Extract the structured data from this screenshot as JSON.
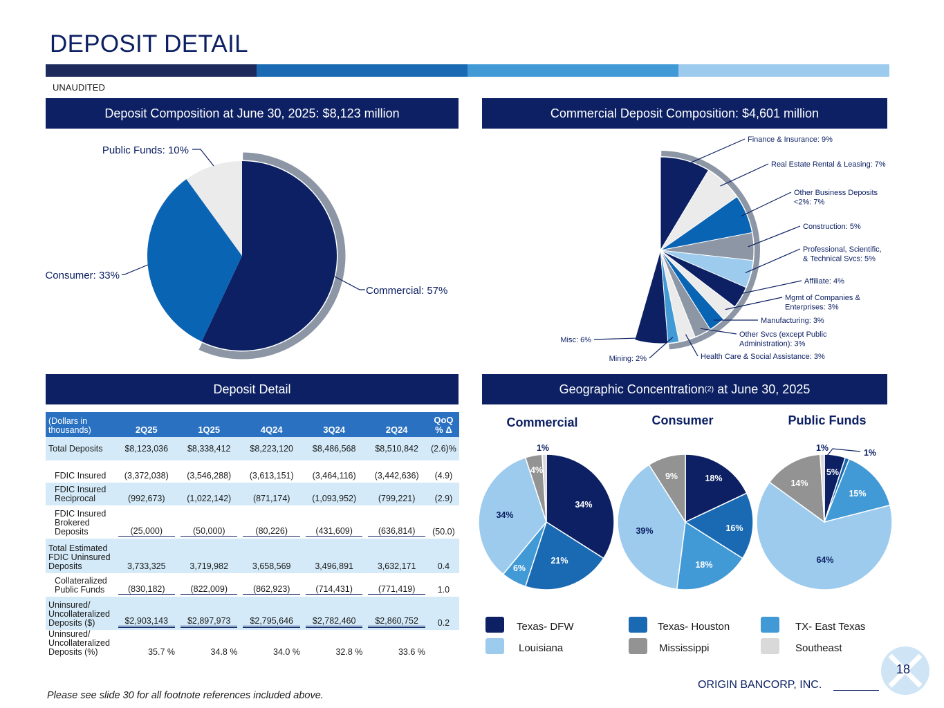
{
  "page": {
    "title": "DEPOSIT DETAIL",
    "unaudited": "UNAUDITED",
    "footnote": "Please see slide 30 for all footnote references included above.",
    "company": "ORIGIN BANCORP, INC.",
    "page_number": "18",
    "accent_colors": [
      "#1f2a5c",
      "#1a69b3",
      "#4199d6",
      "#9dcbed"
    ]
  },
  "headers": {
    "composition": "Deposit Composition at June 30, 2025: $8,123 million",
    "commercial": "Commercial Deposit Composition: $4,601 million",
    "detail": "Deposit Detail",
    "geo_prefix": "Geographic Concentration",
    "geo_sup": "(2)",
    "geo_suffix": " at June 30, 2025"
  },
  "chart_data": [
    {
      "type": "pie",
      "title": "Deposit Composition at June 30, 2025: $8,123 million",
      "labels": [
        "Commercial: 57%",
        "Consumer: 33%",
        "Public Funds: 10%"
      ],
      "values": [
        57,
        33,
        10
      ],
      "colors": [
        "#0c2063",
        "#0a64b4",
        "#ebebeb"
      ]
    },
    {
      "type": "pie",
      "title": "Commercial Deposit Composition: $4,601 million",
      "labels": [
        "Finance & Insurance: 9%",
        "Real Estate Rental & Leasing: 7%",
        "Other Business Deposits <2%: 7%",
        "Construction: 5%",
        "Professional, Scientific, & Technical Svcs: 5%",
        "Affiliate: 4%",
        "Mgmt of Companies & Enterprises: 3%",
        "Manufacturing: 3%",
        "Other Svcs (except Public Administration): 3%",
        "Health Care & Social Assistance: 3%",
        "Mining: 2%",
        "Misc: 6%"
      ],
      "values": [
        9,
        7,
        7,
        5,
        5,
        4,
        3,
        3,
        3,
        3,
        2,
        6
      ],
      "colors": [
        "#0c2063",
        "#ebebeb",
        "#0a64b4",
        "#8c96a5",
        "#9dcbed",
        "#0c2063",
        "#ebebeb",
        "#0a64b4",
        "#8c96a5",
        "#ebebeb",
        "#4199d6",
        "#0c2063"
      ]
    },
    {
      "type": "pie",
      "title": "Commercial",
      "labels": [
        "Texas- DFW",
        "Texas- Houston",
        "TX- East Texas",
        "Louisiana",
        "Mississippi",
        "Southeast"
      ],
      "values": [
        34,
        21,
        6,
        34,
        4,
        1
      ],
      "display": [
        "34%",
        "21%",
        "6%",
        "34%",
        "4%",
        "1%"
      ]
    },
    {
      "type": "pie",
      "title": "Consumer",
      "labels": [
        "Texas- DFW",
        "Texas- Houston",
        "TX- East Texas",
        "Louisiana",
        "Mississippi"
      ],
      "values": [
        18,
        16,
        18,
        39,
        9
      ],
      "display": [
        "18%",
        "16%",
        "18%",
        "39%",
        "9%"
      ]
    },
    {
      "type": "pie",
      "title": "Public Funds",
      "labels": [
        "Texas- DFW",
        "Texas- Houston",
        "TX- East Texas",
        "Louisiana",
        "Mississippi",
        "Southeast"
      ],
      "values": [
        5,
        1,
        15,
        64,
        14,
        1
      ],
      "display": [
        "5%",
        "1%",
        "15%",
        "64%",
        "14%",
        "1%"
      ]
    }
  ],
  "legend": {
    "items": [
      {
        "label": "Texas- DFW",
        "color": "#0c2063"
      },
      {
        "label": "Texas- Houston",
        "color": "#1a69b3"
      },
      {
        "label": "TX- East Texas",
        "color": "#4199d6"
      },
      {
        "label": "Louisiana",
        "color": "#9dcbed"
      },
      {
        "label": "Mississippi",
        "color": "#939393"
      },
      {
        "label": "Southeast",
        "color": "#d9d9d9"
      }
    ]
  },
  "table": {
    "col0": "(Dollars in thousands)",
    "columns": [
      "2Q25",
      "1Q25",
      "4Q24",
      "3Q24",
      "2Q24",
      "QoQ % Δ"
    ],
    "rows": [
      {
        "label": "Total Deposits",
        "values": [
          "$8,123,036",
          "$8,338,412",
          "$8,223,120",
          "$8,486,568",
          "$8,510,842",
          "(2.6)%"
        ]
      },
      {
        "label": "FDIC Insured",
        "values": [
          "(3,372,038)",
          "(3,546,288)",
          "(3,613,151)",
          "(3,464,116)",
          "(3,442,636)",
          "(4.9)"
        ]
      },
      {
        "label": "FDIC Insured Reciprocal",
        "values": [
          "(992,673)",
          "(1,022,142)",
          "(871,174)",
          "(1,093,952)",
          "(799,221)",
          "(2.9)"
        ]
      },
      {
        "label": "FDIC Insured Brokered Deposits",
        "values": [
          "(25,000)",
          "(50,000)",
          "(80,226)",
          "(431,609)",
          "(636,814)",
          "(50.0)"
        ]
      },
      {
        "label": "Total Estimated FDIC Uninsured Deposits",
        "values": [
          "3,733,325",
          "3,719,982",
          "3,658,569",
          "3,496,891",
          "3,632,171",
          "0.4"
        ]
      },
      {
        "label": "Collateralized Public Funds",
        "values": [
          "(830,182)",
          "(822,009)",
          "(862,923)",
          "(714,431)",
          "(771,419)",
          "1.0"
        ]
      },
      {
        "label": "Uninsured/ Uncollateralized Deposits ($)",
        "values": [
          "$2,903,143",
          "$2,897,973",
          "$2,795,646",
          "$2,782,460",
          "$2,860,752",
          "0.2"
        ]
      },
      {
        "label": "Uninsured/ Uncollateralized Deposits (%)",
        "values": [
          "35.7 %",
          "34.8 %",
          "34.0 %",
          "32.8 %",
          "33.6 %",
          ""
        ]
      }
    ]
  }
}
